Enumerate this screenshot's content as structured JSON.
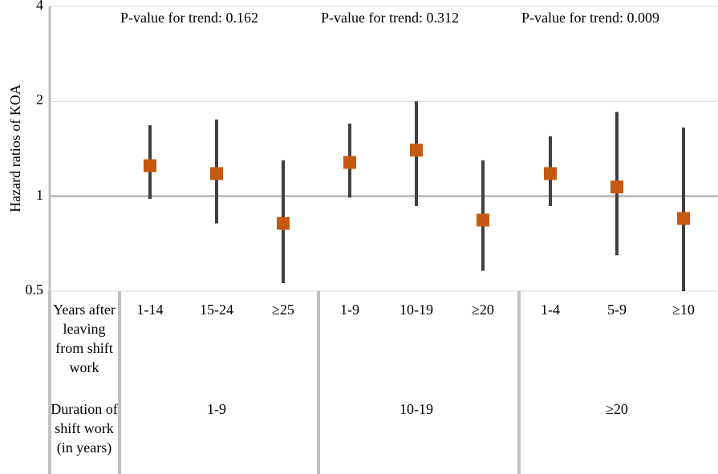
{
  "chart_data": {
    "type": "scatter",
    "subtype": "forest-plot",
    "ylabel": "Hazard ratios of KOA",
    "y_scale": "log",
    "ylim": [
      0.5,
      4
    ],
    "yticks": [
      "0.5",
      "1",
      "2",
      "4"
    ],
    "reference_line": 1,
    "grid": true,
    "marker_color": "#c65911",
    "errorbar_color": "#404040",
    "groups": [
      {
        "duration": "1-9",
        "trend": "P-value for trend: 0.162",
        "categories": [
          "1-14",
          "15-24",
          "≥25"
        ],
        "hr": [
          1.25,
          1.18,
          0.82
        ],
        "lower": [
          0.98,
          0.82,
          0.53
        ],
        "upper": [
          1.68,
          1.75,
          1.3
        ]
      },
      {
        "duration": "10-19",
        "trend": "P-value for trend: 0.312",
        "categories": [
          "1-9",
          "10-19",
          "≥20"
        ],
        "hr": [
          1.28,
          1.4,
          0.84
        ],
        "lower": [
          0.99,
          0.93,
          0.58
        ],
        "upper": [
          1.7,
          2.0,
          1.3
        ]
      },
      {
        "duration": "≥20",
        "trend": "P-value for trend: 0.009",
        "categories": [
          "1-4",
          "5-9",
          "≥10"
        ],
        "hr": [
          1.18,
          1.07,
          0.85
        ],
        "lower": [
          0.93,
          0.65,
          0.5
        ],
        "upper": [
          1.55,
          1.85,
          1.65
        ]
      }
    ],
    "row_labels": {
      "years_after": "Years after leaving from shift work",
      "duration": "Duration of shift work (in years)"
    }
  }
}
